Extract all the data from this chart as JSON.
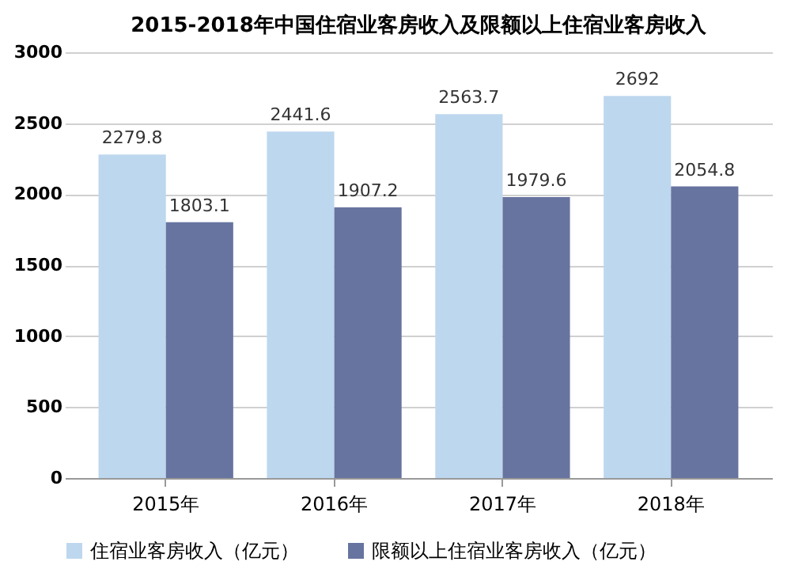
{
  "chart_data": {
    "type": "bar",
    "title": "2015-2018年中国住宿业客房收入及限额以上住宿业客房收入",
    "categories": [
      "2015年",
      "2016年",
      "2017年",
      "2018年"
    ],
    "series": [
      {
        "name": "住宿业客房收入（亿元）",
        "color": "#bdd7ee",
        "values": [
          2279.8,
          2441.6,
          2563.7,
          2692
        ]
      },
      {
        "name": "限额以上住宿业客房收入（亿元）",
        "color": "#6774a0",
        "values": [
          1803.1,
          1907.2,
          1979.6,
          2054.8
        ]
      }
    ],
    "ylim": [
      0,
      3000
    ],
    "yticks": [
      0,
      500,
      1000,
      1500,
      2000,
      2500,
      3000
    ],
    "grid": "y",
    "legend": "bottom",
    "data_labels": true
  }
}
